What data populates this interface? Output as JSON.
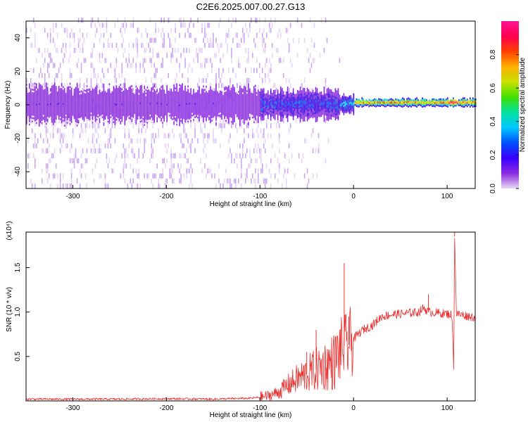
{
  "title": "C2E6.2025.007.00.27.G13",
  "chart_data": [
    {
      "type": "heatmap",
      "xlabel": "Height of straight line (km)",
      "ylabel": "Frequency (Hz)",
      "xlim": [
        -350,
        130
      ],
      "ylim": [
        -50,
        50
      ],
      "x_ticks": [
        -300,
        -200,
        -100,
        0,
        100
      ],
      "y_ticks": [
        -40,
        -20,
        0,
        20,
        40
      ],
      "grid": false,
      "colorbar": {
        "label": "Normalized spectral amplitude",
        "range": [
          0,
          1
        ],
        "ticks": [
          "0.0",
          "0.2",
          "0.4",
          "0.6",
          "0.8"
        ],
        "colors": [
          "#e8d8f4",
          "#8a2be2",
          "#3a00ff",
          "#0050ff",
          "#00c8ff",
          "#00e0a0",
          "#40e000",
          "#c8e000",
          "#ffb000",
          "#ff4000",
          "#ff0050",
          "#ff1493"
        ]
      },
      "features": [
        {
          "region": "x < -100",
          "band_center_hz": 0,
          "band_halfwidth_hz": 10,
          "level": 0.12,
          "sparse_scatter_halfwidth_hz": 50
        },
        {
          "region": "-100 <= x < -15",
          "band_center_hz": 0,
          "band_halfwidth_hz": 8,
          "level": 0.25,
          "scatter_fades_out": true
        },
        {
          "region": "-15 <= x < 0",
          "band_center_hz": 0,
          "band_halfwidth_hz": 5,
          "level": 0.35
        },
        {
          "region": "0 <= x <= 130",
          "band_center_hz": 1,
          "band_halfwidth_hz": 2,
          "level": 0.85
        }
      ]
    },
    {
      "type": "line",
      "xlabel": "Height of straight line (km)",
      "ylabel": "SNR (10 * v/v)",
      "y_scale_label": "(x10⁴)",
      "xlim": [
        -350,
        130
      ],
      "ylim": [
        0,
        1.9
      ],
      "x_ticks": [
        -300,
        -200,
        -100,
        0,
        100
      ],
      "y_ticks": [
        "0.5",
        "1.0",
        "1.5"
      ],
      "line_color": "#e8302f",
      "grid": false,
      "series": [
        {
          "x": [
            -350,
            -300,
            -250,
            -200,
            -150,
            -110,
            -100,
            -90,
            -80,
            -70,
            -60,
            -50,
            -40,
            -30,
            -20,
            -15,
            -12,
            -10,
            -8,
            -5,
            0,
            5,
            10,
            20,
            30,
            40,
            50,
            60,
            70,
            75,
            80,
            90,
            100,
            105,
            107,
            108,
            110,
            120,
            130
          ],
          "values": [
            0.02,
            0.02,
            0.02,
            0.025,
            0.02,
            0.03,
            0.04,
            0.06,
            0.1,
            0.18,
            0.25,
            0.3,
            0.35,
            0.4,
            0.45,
            0.55,
            0.6,
            0.62,
            0.6,
            0.63,
            0.7,
            0.75,
            0.8,
            0.85,
            0.95,
            0.97,
            0.98,
            0.99,
            1.0,
            1.05,
            1.0,
            0.99,
            0.98,
            0.97,
            0.4,
            1.85,
            0.98,
            0.96,
            0.94
          ]
        }
      ],
      "spikes": [
        {
          "x": -50,
          "value": 0.55
        },
        {
          "x": -40,
          "value": 0.8
        },
        {
          "x": -10,
          "value": 1.55
        },
        {
          "x": -5,
          "value": 0.95
        },
        {
          "x": 80,
          "value": 1.2
        },
        {
          "x": 108,
          "value": 1.9
        }
      ]
    }
  ]
}
